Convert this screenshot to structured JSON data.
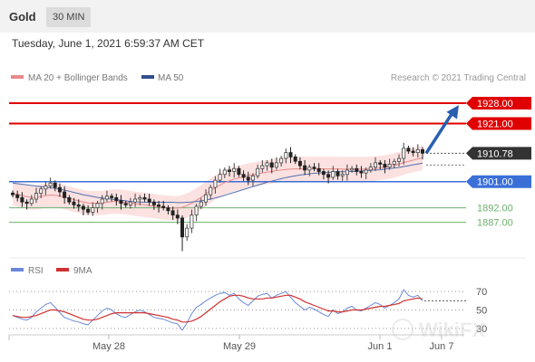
{
  "header": {
    "title": "Gold",
    "timeframe": "30 MIN"
  },
  "datetime": "Tuesday, June 1, 2021 6:59:37 AM CET",
  "legend": {
    "ma20": "MA 20 + Bollinger Bands",
    "ma50": "MA 50",
    "credit": "Research © 2021 Trading Central"
  },
  "rsi_legend": {
    "rsi": "RSI",
    "ma9": "9MA"
  },
  "watermark": "WikiFX",
  "colors": {
    "resistance": "#e00000",
    "pivot": "#3a6fd8",
    "support": "#6fb06f",
    "last": "#333333",
    "band": "#fbd7d7",
    "ma20": "#e88a8a",
    "ma50": "#5070b0",
    "rsi": "#6a88d8",
    "rsi_ma": "#d03030",
    "arrow": "#2a5fb0"
  },
  "chart_data": [
    {
      "type": "candlestick",
      "title": "Gold",
      "ylim": [
        1876,
        1933
      ],
      "x_ticks": [
        "May 28",
        "May 29",
        "Jun 1",
        "Jun 7"
      ],
      "levels": [
        {
          "label": "1928.00",
          "value": 1928.0,
          "kind": "resistance"
        },
        {
          "label": "1921.00",
          "value": 1921.0,
          "kind": "resistance"
        },
        {
          "label": "1910.78",
          "value": 1910.78,
          "kind": "last"
        },
        {
          "label": "1901.00",
          "value": 1901.0,
          "kind": "pivot"
        },
        {
          "label": "1892.00",
          "value": 1892.0,
          "kind": "support"
        },
        {
          "label": "1887.00",
          "value": 1887.0,
          "kind": "support"
        }
      ],
      "closes": [
        1896.5,
        1895.5,
        1894.0,
        1893.5,
        1895.0,
        1897.0,
        1898.5,
        1899.5,
        1900.5,
        1899.0,
        1897.5,
        1895.5,
        1894.0,
        1893.0,
        1892.5,
        1891.5,
        1890.5,
        1892.0,
        1893.5,
        1895.0,
        1896.0,
        1895.5,
        1894.5,
        1893.5,
        1893.0,
        1894.0,
        1895.0,
        1895.5,
        1895.0,
        1894.0,
        1893.0,
        1892.5,
        1892.0,
        1891.0,
        1889.5,
        1888.5,
        1882.0,
        1885.0,
        1889.5,
        1892.5,
        1894.0,
        1896.5,
        1899.0,
        1901.5,
        1903.5,
        1905.0,
        1904.5,
        1905.5,
        1903.5,
        1902.5,
        1901.5,
        1903.0,
        1905.5,
        1906.5,
        1907.5,
        1906.0,
        1907.5,
        1909.0,
        1911.0,
        1909.5,
        1908.0,
        1906.5,
        1905.0,
        1906.0,
        1905.5,
        1904.5,
        1903.5,
        1902.5,
        1904.5,
        1903.0,
        1903.5,
        1905.0,
        1905.5,
        1904.5,
        1904.0,
        1905.0,
        1906.0,
        1907.5,
        1907.0,
        1906.0,
        1907.0,
        1908.0,
        1909.0,
        1912.5,
        1911.5,
        1911.0,
        1912.0,
        1910.78
      ],
      "ma20": [
        1897.0,
        1896.6,
        1896.2,
        1895.8,
        1895.6,
        1895.6,
        1895.9,
        1896.2,
        1896.4,
        1896.3,
        1896.0,
        1895.7,
        1895.3,
        1894.8,
        1894.4,
        1894.0,
        1893.7,
        1893.6,
        1893.6,
        1893.7,
        1893.9,
        1894.1,
        1894.2,
        1894.1,
        1893.9,
        1893.7,
        1893.4,
        1893.2,
        1893.0,
        1892.8,
        1892.6,
        1892.3,
        1892.2,
        1892.0,
        1891.9,
        1891.9,
        1892.2,
        1892.8,
        1893.6,
        1894.6,
        1895.6,
        1896.8,
        1897.9,
        1899.0,
        1899.8,
        1900.7,
        1901.3,
        1901.9,
        1902.3,
        1902.7,
        1903.1,
        1903.4,
        1903.7,
        1904.0,
        1904.3,
        1904.5,
        1904.8,
        1905.0,
        1905.2,
        1905.3,
        1905.4,
        1905.4,
        1905.4,
        1905.4,
        1905.4,
        1905.4,
        1905.4,
        1905.4,
        1905.4,
        1905.4,
        1905.3,
        1905.3,
        1905.3,
        1905.3,
        1905.3,
        1905.3,
        1905.4,
        1905.5,
        1905.7,
        1905.9,
        1906.2,
        1906.6,
        1907.0,
        1907.6,
        1908.0,
        1908.4,
        1908.8,
        1909.2
      ],
      "ma50": [
        1900.5,
        1900.3,
        1900.1,
        1899.9,
        1899.7,
        1899.5,
        1899.3,
        1899.1,
        1898.9,
        1898.7,
        1898.4,
        1898.1,
        1897.7,
        1897.3,
        1896.9,
        1896.5,
        1896.2,
        1895.9,
        1895.6,
        1895.4,
        1895.2,
        1895.0,
        1894.8,
        1894.6,
        1894.4,
        1894.2,
        1894.1,
        1894.0,
        1893.9,
        1893.9,
        1893.9,
        1893.9,
        1893.9,
        1893.9,
        1893.9,
        1893.8,
        1893.8,
        1893.9,
        1894.0,
        1894.2,
        1894.4,
        1894.7,
        1895.0,
        1895.4,
        1895.8,
        1896.3,
        1896.8,
        1897.3,
        1897.8,
        1898.3,
        1898.8,
        1899.3,
        1899.8,
        1900.3,
        1900.8,
        1901.2,
        1901.6,
        1902.0,
        1902.4,
        1902.7,
        1903.0,
        1903.3,
        1903.5,
        1903.7,
        1903.9,
        1904.0,
        1904.1,
        1904.2,
        1904.3,
        1904.4,
        1904.4,
        1904.5,
        1904.5,
        1904.6,
        1904.7,
        1904.8,
        1904.9,
        1905.0,
        1905.1,
        1905.3,
        1905.5,
        1905.7,
        1905.9,
        1906.2,
        1906.5,
        1906.8,
        1907.1,
        1907.4
      ],
      "band_width": 4.2,
      "projection": {
        "from": 1910.78,
        "to": 1928.0
      }
    },
    {
      "type": "line",
      "legend": [
        "RSI",
        "9MA"
      ],
      "ylim": [
        25,
        80
      ],
      "y_ticks": [
        70,
        50,
        30
      ],
      "rsi": [
        44,
        42,
        40,
        39,
        42,
        48,
        52,
        56,
        58,
        53,
        47,
        42,
        40,
        38,
        37,
        35,
        34,
        39,
        44,
        49,
        52,
        50,
        46,
        43,
        42,
        45,
        48,
        50,
        48,
        45,
        42,
        41,
        40,
        38,
        36,
        35,
        28,
        36,
        46,
        53,
        56,
        60,
        63,
        66,
        68,
        69,
        66,
        68,
        62,
        58,
        55,
        60,
        65,
        67,
        68,
        63,
        66,
        68,
        70,
        64,
        58,
        54,
        50,
        53,
        51,
        48,
        45,
        43,
        50,
        46,
        48,
        52,
        54,
        50,
        49,
        52,
        55,
        58,
        56,
        52,
        55,
        58,
        62,
        72,
        66,
        64,
        66,
        60
      ],
      "ma9": [
        44,
        43,
        42,
        42,
        43,
        44,
        46,
        48,
        50,
        50,
        49,
        48,
        46,
        44,
        42,
        40,
        39,
        39,
        40,
        42,
        44,
        46,
        47,
        47,
        47,
        47,
        47,
        47,
        47,
        46,
        45,
        44,
        43,
        42,
        40,
        39,
        37,
        37,
        38,
        40,
        43,
        47,
        51,
        55,
        59,
        62,
        65,
        66,
        66,
        65,
        63,
        62,
        62,
        62,
        63,
        63,
        64,
        65,
        66,
        66,
        64,
        62,
        59,
        57,
        55,
        53,
        51,
        49,
        49,
        48,
        48,
        49,
        50,
        50,
        50,
        51,
        52,
        53,
        54,
        54,
        55,
        56,
        57,
        60,
        61,
        62,
        63,
        62
      ]
    }
  ]
}
